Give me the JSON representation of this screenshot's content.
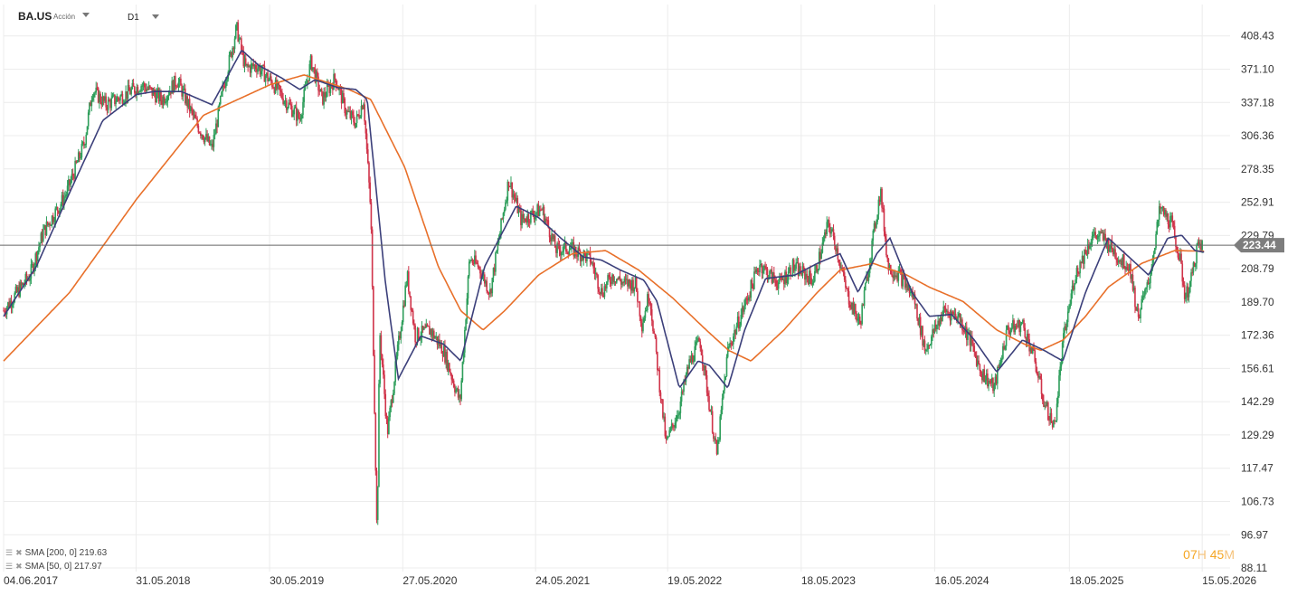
{
  "header": {
    "symbol": "BA.US",
    "instrument_type": "Acción",
    "timeframe": "D1"
  },
  "legend": [
    {
      "label": "SMA [200, 0] 219.63",
      "color": "#e8702a"
    },
    {
      "label": "SMA [50, 0] 217.97",
      "color": "#3b3f7a"
    }
  ],
  "timer": {
    "hours": "07",
    "h_unit": "H",
    "minutes": "45",
    "m_unit": "M"
  },
  "colors": {
    "up": "#2e9e5b",
    "down": "#d0344a",
    "sma200": "#e8702a",
    "sma50": "#3b3f7a",
    "price_line": "#666666",
    "price_tag": "#7d7d7d"
  },
  "chart_data": {
    "type": "candlestick",
    "symbol": "BA.US",
    "timeframe": "D1",
    "current_price": 223.44,
    "current_price_label": "223.44",
    "y_axis": {
      "scale": "log",
      "range": [
        88.11,
        430
      ],
      "ticks": [
        "408.43",
        "371.10",
        "337.18",
        "306.36",
        "278.35",
        "252.91",
        "229.79",
        "208.79",
        "189.70",
        "172.36",
        "156.61",
        "142.29",
        "129.29",
        "117.47",
        "106.73",
        "96.97",
        "88.11"
      ]
    },
    "x_axis": {
      "range": [
        "2017-06-04",
        "2026-07-30"
      ],
      "ticks": [
        "04.06.2017",
        "31.05.2018",
        "30.05.2019",
        "27.05.2020",
        "24.05.2021",
        "19.05.2022",
        "18.05.2023",
        "16.05.2024",
        "18.05.2025",
        "15.05.2026"
      ]
    },
    "price_path": [
      [
        "2017-06-04",
        185
      ],
      [
        "2017-08-15",
        205
      ],
      [
        "2017-09-20",
        232
      ],
      [
        "2017-11-20",
        258
      ],
      [
        "2018-01-10",
        300
      ],
      [
        "2018-02-01",
        350
      ],
      [
        "2018-03-10",
        335
      ],
      [
        "2018-05-01",
        345
      ],
      [
        "2018-06-15",
        355
      ],
      [
        "2018-08-10",
        340
      ],
      [
        "2018-09-20",
        360
      ],
      [
        "2018-11-10",
        318
      ],
      [
        "2018-12-24",
        295
      ],
      [
        "2019-01-20",
        345
      ],
      [
        "2019-03-01",
        418
      ],
      [
        "2019-03-25",
        372
      ],
      [
        "2019-04-25",
        375
      ],
      [
        "2019-06-10",
        355
      ],
      [
        "2019-07-20",
        335
      ],
      [
        "2019-08-20",
        322
      ],
      [
        "2019-09-20",
        380
      ],
      [
        "2019-10-20",
        340
      ],
      [
        "2019-11-25",
        362
      ],
      [
        "2019-12-25",
        328
      ],
      [
        "2020-01-20",
        318
      ],
      [
        "2020-02-10",
        340
      ],
      [
        "2020-03-01",
        245
      ],
      [
        "2020-03-18",
        95
      ],
      [
        "2020-03-25",
        175
      ],
      [
        "2020-04-15",
        130
      ],
      [
        "2020-06-08",
        205
      ],
      [
        "2020-06-30",
        172
      ],
      [
        "2020-08-10",
        175
      ],
      [
        "2020-09-15",
        165
      ],
      [
        "2020-10-30",
        142
      ],
      [
        "2020-11-25",
        215
      ],
      [
        "2020-12-20",
        210
      ],
      [
        "2021-01-20",
        195
      ],
      [
        "2021-03-12",
        270
      ],
      [
        "2021-04-15",
        240
      ],
      [
        "2021-06-10",
        248
      ],
      [
        "2021-07-20",
        220
      ],
      [
        "2021-08-20",
        222
      ],
      [
        "2021-10-20",
        215
      ],
      [
        "2021-11-20",
        195
      ],
      [
        "2021-12-20",
        205
      ],
      [
        "2022-01-20",
        200
      ],
      [
        "2022-02-20",
        200
      ],
      [
        "2022-03-10",
        178
      ],
      [
        "2022-03-30",
        195
      ],
      [
        "2022-05-15",
        126
      ],
      [
        "2022-06-20",
        140
      ],
      [
        "2022-07-15",
        158
      ],
      [
        "2022-08-15",
        170
      ],
      [
        "2022-09-30",
        122
      ],
      [
        "2022-10-30",
        165
      ],
      [
        "2022-12-15",
        188
      ],
      [
        "2023-01-25",
        212
      ],
      [
        "2023-02-20",
        205
      ],
      [
        "2023-03-20",
        200
      ],
      [
        "2023-04-25",
        210
      ],
      [
        "2023-06-20",
        202
      ],
      [
        "2023-07-31",
        238
      ],
      [
        "2023-08-20",
        224
      ],
      [
        "2023-09-20",
        194
      ],
      [
        "2023-10-25",
        178
      ],
      [
        "2023-12-20",
        262
      ],
      [
        "2024-01-10",
        210
      ],
      [
        "2024-02-10",
        205
      ],
      [
        "2024-03-20",
        192
      ],
      [
        "2024-04-20",
        165
      ],
      [
        "2024-06-10",
        185
      ],
      [
        "2024-07-20",
        182
      ],
      [
        "2024-08-20",
        170
      ],
      [
        "2024-09-20",
        155
      ],
      [
        "2024-10-25",
        148
      ],
      [
        "2024-11-30",
        175
      ],
      [
        "2025-01-10",
        178
      ],
      [
        "2025-02-10",
        162
      ],
      [
        "2025-03-10",
        142
      ],
      [
        "2025-04-07",
        132
      ],
      [
        "2025-04-30",
        168
      ],
      [
        "2025-06-01",
        204
      ],
      [
        "2025-07-20",
        230
      ],
      [
        "2025-08-20",
        228
      ],
      [
        "2025-10-01",
        215
      ],
      [
        "2025-10-30",
        210
      ],
      [
        "2025-11-20",
        182
      ],
      [
        "2025-12-20",
        200
      ],
      [
        "2026-01-20",
        248
      ],
      [
        "2026-02-20",
        238
      ],
      [
        "2026-03-15",
        215
      ],
      [
        "2026-03-30",
        192
      ],
      [
        "2026-04-15",
        202
      ],
      [
        "2026-05-01",
        222
      ],
      [
        "2026-05-15",
        223.44
      ]
    ],
    "sma50_path": [
      [
        "2017-06-04",
        182
      ],
      [
        "2017-09-01",
        210
      ],
      [
        "2017-12-01",
        260
      ],
      [
        "2018-03-01",
        320
      ],
      [
        "2018-06-01",
        345
      ],
      [
        "2018-07-20",
        348
      ],
      [
        "2018-10-01",
        348
      ],
      [
        "2018-12-24",
        335
      ],
      [
        "2019-03-15",
        392
      ],
      [
        "2019-05-01",
        375
      ],
      [
        "2019-07-01",
        362
      ],
      [
        "2019-08-20",
        350
      ],
      [
        "2019-10-01",
        360
      ],
      [
        "2019-12-01",
        352
      ],
      [
        "2020-01-20",
        350
      ],
      [
        "2020-02-20",
        340
      ],
      [
        "2020-04-10",
        200
      ],
      [
        "2020-05-15",
        152
      ],
      [
        "2020-07-15",
        172
      ],
      [
        "2020-09-15",
        168
      ],
      [
        "2020-11-01",
        160
      ],
      [
        "2021-01-05",
        210
      ],
      [
        "2021-04-01",
        250
      ],
      [
        "2021-06-01",
        242
      ],
      [
        "2021-08-01",
        228
      ],
      [
        "2021-10-01",
        216
      ],
      [
        "2021-11-20",
        214
      ],
      [
        "2022-01-10",
        208
      ],
      [
        "2022-03-15",
        202
      ],
      [
        "2022-04-20",
        190
      ],
      [
        "2022-06-20",
        148
      ],
      [
        "2022-08-10",
        160
      ],
      [
        "2022-09-10",
        158
      ],
      [
        "2022-10-30",
        148
      ],
      [
        "2022-12-15",
        175
      ],
      [
        "2023-02-10",
        203
      ],
      [
        "2023-05-01",
        205
      ],
      [
        "2023-07-01",
        212
      ],
      [
        "2023-09-01",
        218
      ],
      [
        "2023-10-20",
        195
      ],
      [
        "2023-12-10",
        218
      ],
      [
        "2024-01-15",
        228
      ],
      [
        "2024-03-15",
        195
      ],
      [
        "2024-05-01",
        182
      ],
      [
        "2024-07-01",
        183
      ],
      [
        "2024-09-01",
        170
      ],
      [
        "2024-11-01",
        155
      ],
      [
        "2025-01-10",
        170
      ],
      [
        "2025-03-10",
        165
      ],
      [
        "2025-04-30",
        160
      ],
      [
        "2025-07-01",
        195
      ],
      [
        "2025-09-01",
        228
      ],
      [
        "2025-11-01",
        215
      ],
      [
        "2025-12-20",
        205
      ],
      [
        "2026-02-10",
        228
      ],
      [
        "2026-03-20",
        230
      ],
      [
        "2026-04-25",
        220
      ],
      [
        "2026-05-20",
        219
      ]
    ],
    "sma200_path": [
      [
        "2017-06-04",
        160
      ],
      [
        "2017-12-01",
        195
      ],
      [
        "2018-06-01",
        255
      ],
      [
        "2018-12-01",
        325
      ],
      [
        "2019-06-01",
        355
      ],
      [
        "2019-09-01",
        365
      ],
      [
        "2020-01-01",
        350
      ],
      [
        "2020-03-01",
        340
      ],
      [
        "2020-06-01",
        280
      ],
      [
        "2020-09-01",
        210
      ],
      [
        "2020-11-01",
        185
      ],
      [
        "2021-01-01",
        175
      ],
      [
        "2021-03-01",
        185
      ],
      [
        "2021-06-01",
        205
      ],
      [
        "2021-09-01",
        218
      ],
      [
        "2021-12-01",
        220
      ],
      [
        "2022-03-01",
        208
      ],
      [
        "2022-06-01",
        192
      ],
      [
        "2022-09-01",
        175
      ],
      [
        "2022-11-01",
        165
      ],
      [
        "2023-01-01",
        160
      ],
      [
        "2023-04-01",
        175
      ],
      [
        "2023-07-01",
        195
      ],
      [
        "2023-09-01",
        208
      ],
      [
        "2023-12-01",
        212
      ],
      [
        "2024-03-01",
        205
      ],
      [
        "2024-05-01",
        198
      ],
      [
        "2024-08-01",
        190
      ],
      [
        "2024-11-01",
        175
      ],
      [
        "2025-01-15",
        168
      ],
      [
        "2025-03-01",
        165
      ],
      [
        "2025-05-01",
        170
      ],
      [
        "2025-07-01",
        182
      ],
      [
        "2025-09-01",
        198
      ],
      [
        "2025-12-01",
        212
      ],
      [
        "2026-03-01",
        220
      ],
      [
        "2026-05-20",
        219.6
      ]
    ]
  }
}
